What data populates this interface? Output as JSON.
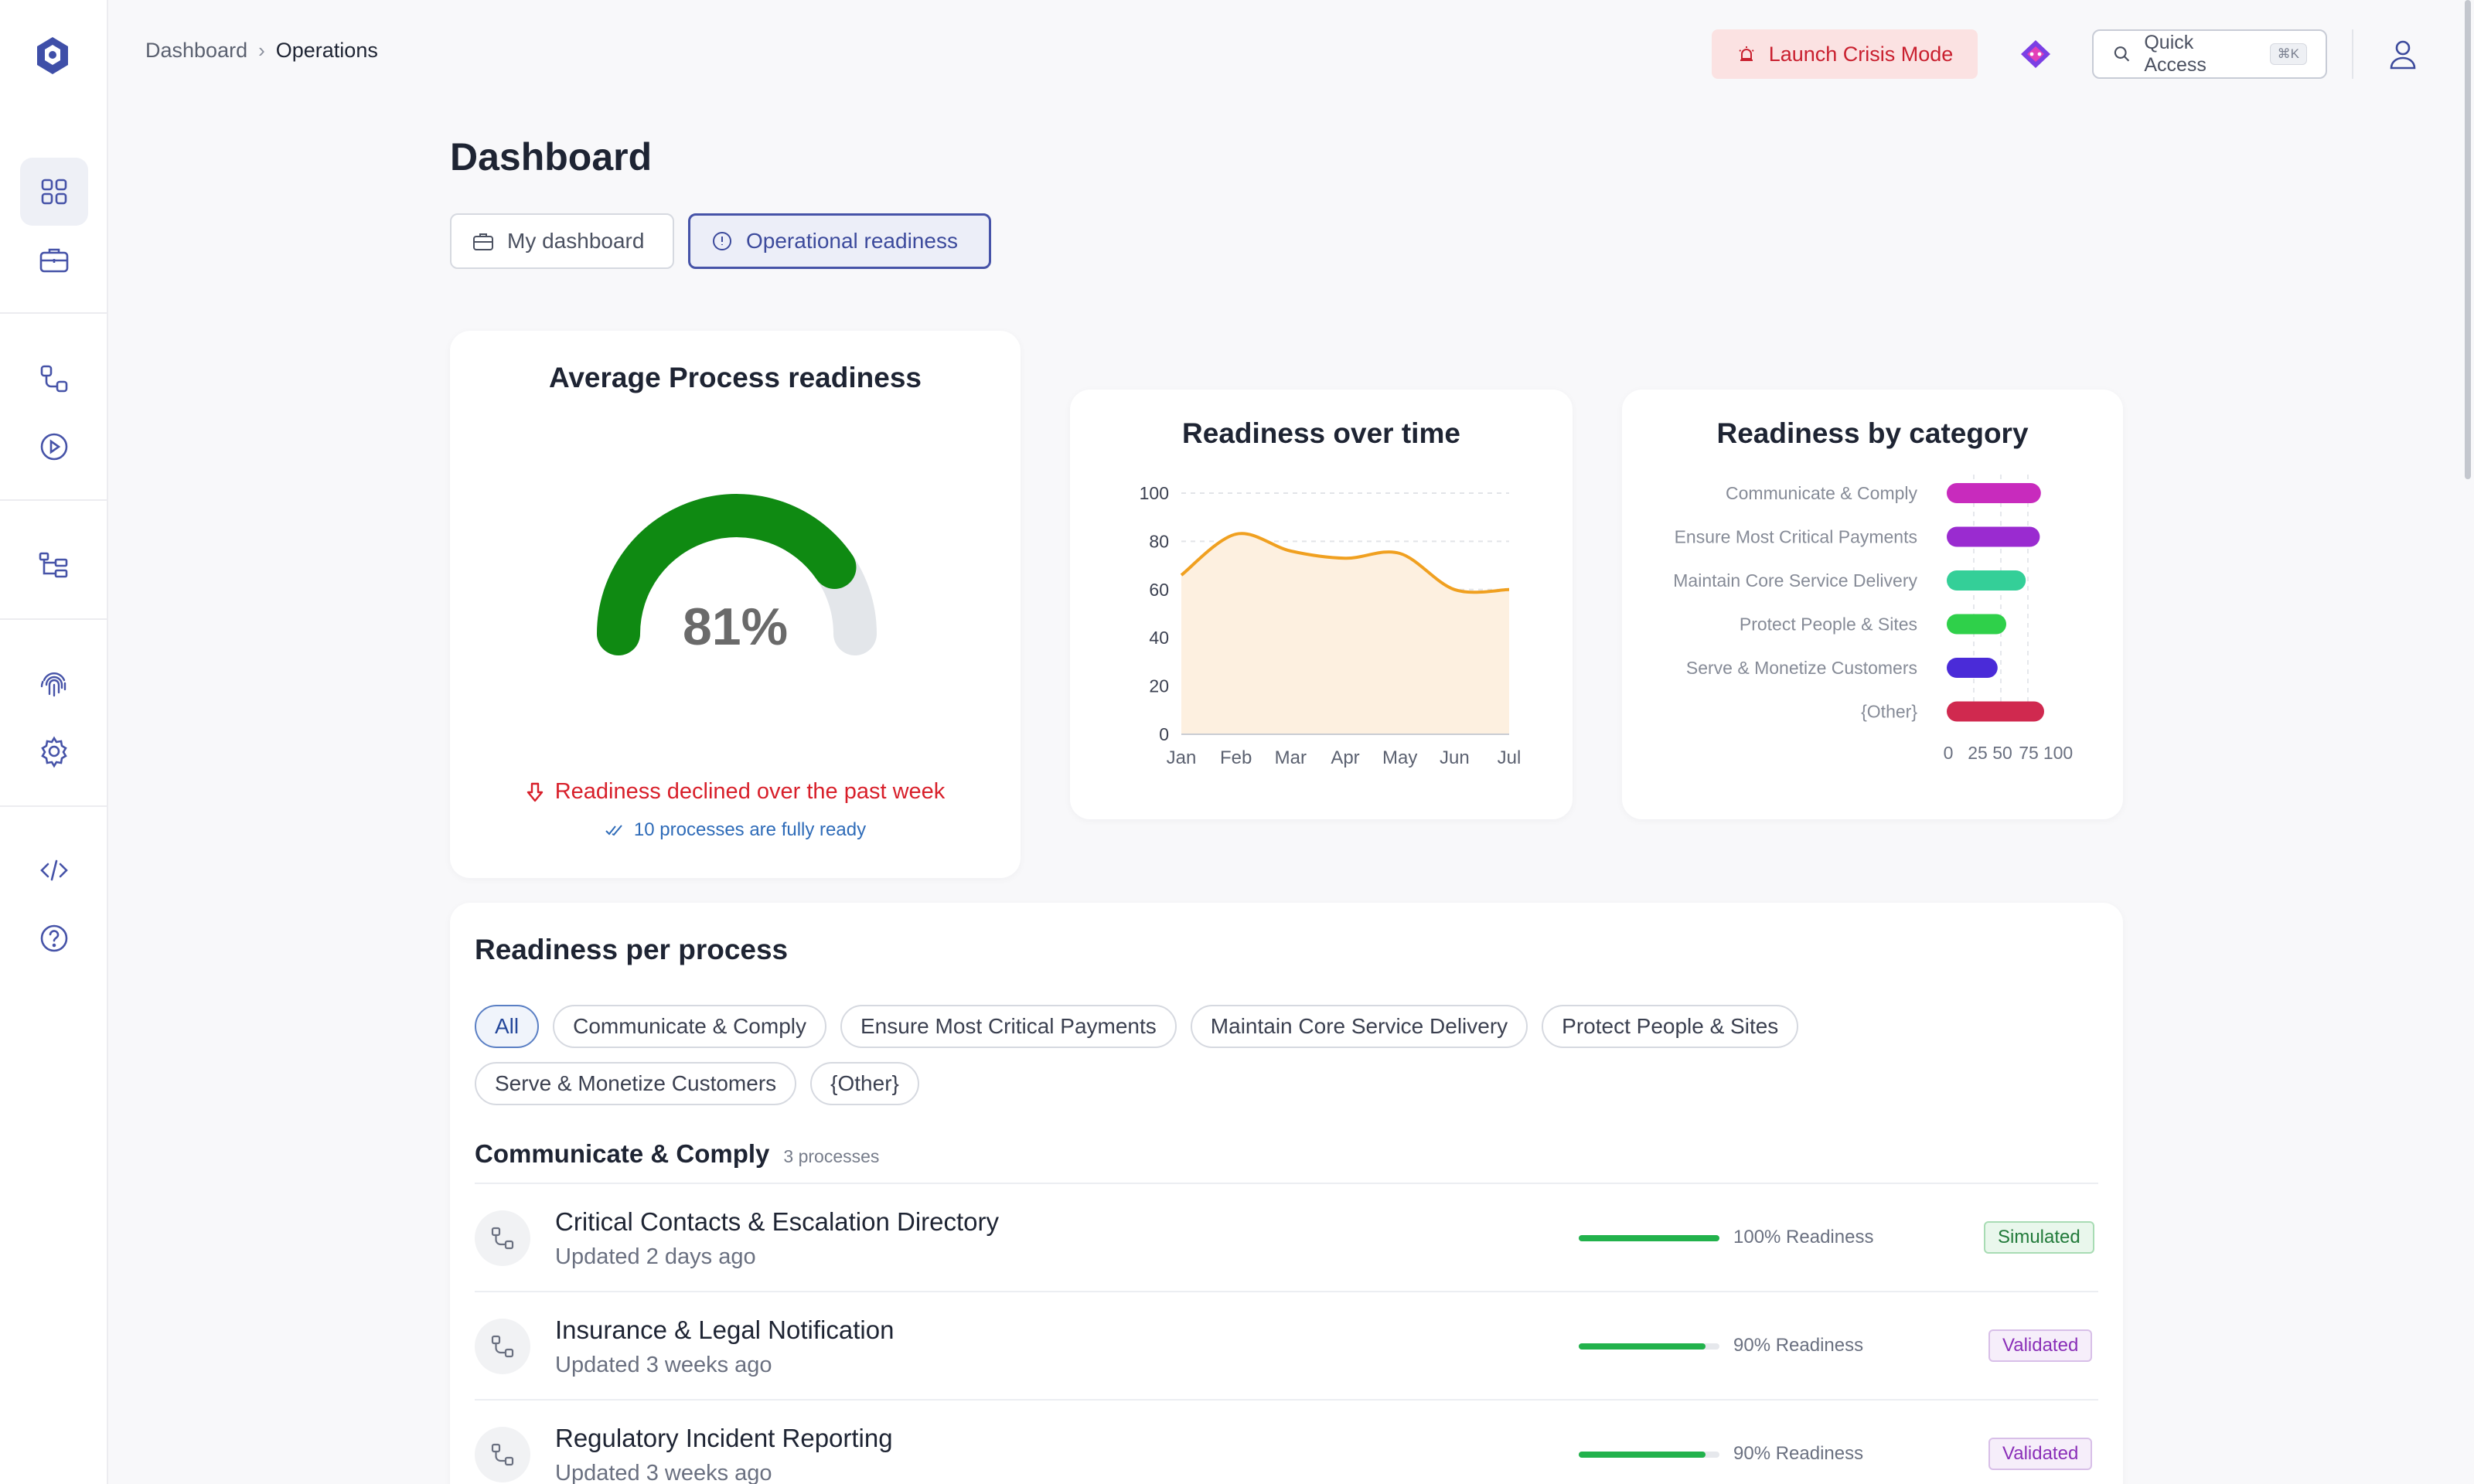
{
  "breadcrumb": {
    "root": "Dashboard",
    "current": "Operations"
  },
  "header": {
    "crisis_label": "Launch Crisis Mode",
    "quick_access_label": "Quick Access",
    "quick_access_shortcut": "⌘K"
  },
  "page": {
    "title": "Dashboard"
  },
  "tabs": [
    {
      "label": "My dashboard",
      "active": false
    },
    {
      "label": "Operational readiness",
      "active": true
    }
  ],
  "gauge": {
    "title": "Average Process readiness",
    "value": 81,
    "value_label": "81%",
    "trend_text": "Readiness declined over the past week",
    "ready_text": "10 processes are fully ready",
    "color": "#0f8a12",
    "track_color": "#e3e6ea"
  },
  "chart_data": [
    {
      "type": "area",
      "title": "Readiness over time",
      "x": [
        "Jan",
        "Feb",
        "Mar",
        "Apr",
        "May",
        "Jun",
        "Jul"
      ],
      "values": [
        66,
        83,
        76,
        73,
        75,
        60,
        60
      ],
      "ylim": [
        0,
        100
      ],
      "yticks": [
        0,
        20,
        40,
        60,
        80,
        100
      ],
      "grid": true,
      "line_color": "#f0a020",
      "fill_color": "#fdf0e0"
    },
    {
      "type": "bar",
      "orientation": "horizontal",
      "title": "Readiness by category",
      "categories": [
        "Communicate & Comply",
        "Ensure Most Critical Payments",
        "Maintain Core Service Delivery",
        "Protect People & Sites",
        "Serve & Monetize Customers",
        "{Other}"
      ],
      "values": [
        87,
        86,
        73,
        55,
        47,
        90
      ],
      "colors": [
        "#c82bbd",
        "#9a2bd0",
        "#34cf98",
        "#2fd04a",
        "#4a2bd8",
        "#d0294f"
      ],
      "xticks": [
        "0",
        "25",
        "50",
        "75",
        "100"
      ],
      "xlim": [
        0,
        100
      ]
    }
  ],
  "process_section": {
    "title": "Readiness per process",
    "filters": [
      {
        "label": "All",
        "active": true
      },
      {
        "label": "Communicate & Comply",
        "active": false
      },
      {
        "label": "Ensure Most Critical Payments",
        "active": false
      },
      {
        "label": "Maintain Core Service Delivery",
        "active": false
      },
      {
        "label": "Protect People & Sites",
        "active": false
      },
      {
        "label": "Serve & Monetize Customers",
        "active": false
      },
      {
        "label": "{Other}",
        "active": false
      }
    ],
    "group": {
      "name": "Communicate & Comply",
      "count_label": "3 processes"
    },
    "rows": [
      {
        "name": "Critical Contacts & Escalation Directory",
        "updated": "Updated 2 days ago",
        "readiness": 100,
        "readiness_label": "100% Readiness",
        "status": "Simulated"
      },
      {
        "name": "Insurance & Legal Notification",
        "updated": "Updated 3 weeks ago",
        "readiness": 90,
        "readiness_label": "90% Readiness",
        "status": "Validated"
      },
      {
        "name": "Regulatory Incident Reporting",
        "updated": "Updated 3 weeks ago",
        "readiness": 90,
        "readiness_label": "90% Readiness",
        "status": "Validated"
      }
    ]
  },
  "sidebar": {
    "icons": [
      "dashboard-icon",
      "briefcase-icon",
      "process-flow-icon",
      "play-icon",
      "hierarchy-icon",
      "fingerprint-icon",
      "settings-icon",
      "code-icon",
      "help-icon"
    ]
  }
}
